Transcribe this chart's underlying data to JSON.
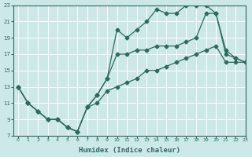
{
  "title": "",
  "xlabel": "Humidex (Indice chaleur)",
  "ylabel": "",
  "background_color": "#cce8e8",
  "grid_color": "#ffffff",
  "line_color": "#2e6b5e",
  "xlim": [
    -0.5,
    23
  ],
  "ylim": [
    7,
    23
  ],
  "xticks": [
    0,
    1,
    2,
    3,
    4,
    5,
    6,
    7,
    8,
    9,
    10,
    11,
    12,
    13,
    14,
    15,
    16,
    17,
    18,
    19,
    20,
    21,
    22,
    23
  ],
  "yticks": [
    7,
    9,
    11,
    13,
    15,
    17,
    19,
    21,
    23
  ],
  "series1_x": [
    0,
    1,
    2,
    3,
    4,
    5,
    6,
    7,
    8,
    9,
    10,
    11,
    12,
    13,
    14,
    15,
    16,
    17,
    18,
    19,
    20,
    21,
    22,
    23
  ],
  "series1_y": [
    13,
    11,
    10,
    9,
    9,
    8,
    7.5,
    10.5,
    12,
    14,
    20,
    19,
    20,
    21,
    22.5,
    22,
    22,
    23,
    23,
    23,
    22,
    17,
    16.5,
    16
  ],
  "series2_x": [
    0,
    1,
    2,
    3,
    4,
    5,
    6,
    7,
    8,
    9,
    10,
    11,
    12,
    13,
    14,
    15,
    16,
    17,
    18,
    19,
    20,
    21,
    22,
    23
  ],
  "series2_y": [
    13,
    11,
    10,
    9,
    9,
    8,
    7.5,
    10.5,
    12,
    14,
    17,
    17,
    17.5,
    17.5,
    18,
    18,
    18,
    18.5,
    19,
    22,
    22,
    17.5,
    16.5,
    16
  ],
  "series3_x": [
    0,
    1,
    2,
    3,
    4,
    5,
    6,
    7,
    8,
    9,
    10,
    11,
    12,
    13,
    14,
    15,
    16,
    17,
    18,
    19,
    20,
    21,
    22,
    23
  ],
  "series3_y": [
    13,
    11,
    10,
    9,
    9,
    8,
    7.5,
    10.5,
    11,
    12.5,
    13,
    13.5,
    14,
    15,
    15,
    15.5,
    16,
    16.5,
    17,
    17.5,
    18,
    16,
    16,
    16
  ]
}
